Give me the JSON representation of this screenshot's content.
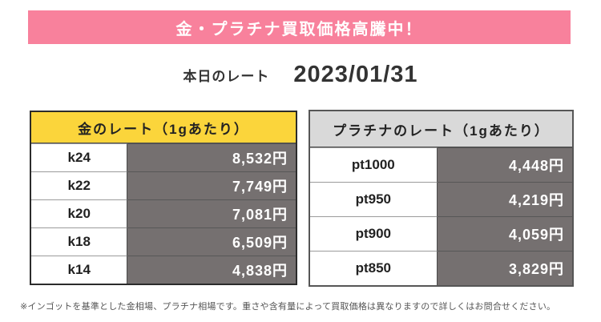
{
  "banner": {
    "text": "金・プラチナ買取価格高騰中！"
  },
  "date_section": {
    "label": "本日のレート",
    "date": "2023/01/31"
  },
  "gold_table": {
    "title": "金のレート（1gあたり）",
    "rows": [
      {
        "label": "k24",
        "value": "8,532円"
      },
      {
        "label": "k22",
        "value": "7,749円"
      },
      {
        "label": "k20",
        "value": "7,081円"
      },
      {
        "label": "k18",
        "value": "6,509円"
      },
      {
        "label": "k14",
        "value": "4,838円"
      }
    ]
  },
  "platinum_table": {
    "title": "プラチナのレート（1gあたり）",
    "rows": [
      {
        "label": "pt1000",
        "value": "4,448円"
      },
      {
        "label": "pt950",
        "value": "4,219円"
      },
      {
        "label": "pt900",
        "value": "4,059円"
      },
      {
        "label": "pt850",
        "value": "3,829円"
      }
    ]
  },
  "footnote": "※インゴットを基準とした金相場、プラチナ相場です。重さや含有量によって買取価格は異なりますので詳しくはお問合せください。",
  "colors": {
    "banner_pink": "#f8819c",
    "gold_header_yellow": "#fbd53b",
    "platinum_header_gray": "#d9d9d9",
    "value_cell_gray": "#757070",
    "text_dark": "#333333",
    "value_text_white": "#ffffff"
  }
}
